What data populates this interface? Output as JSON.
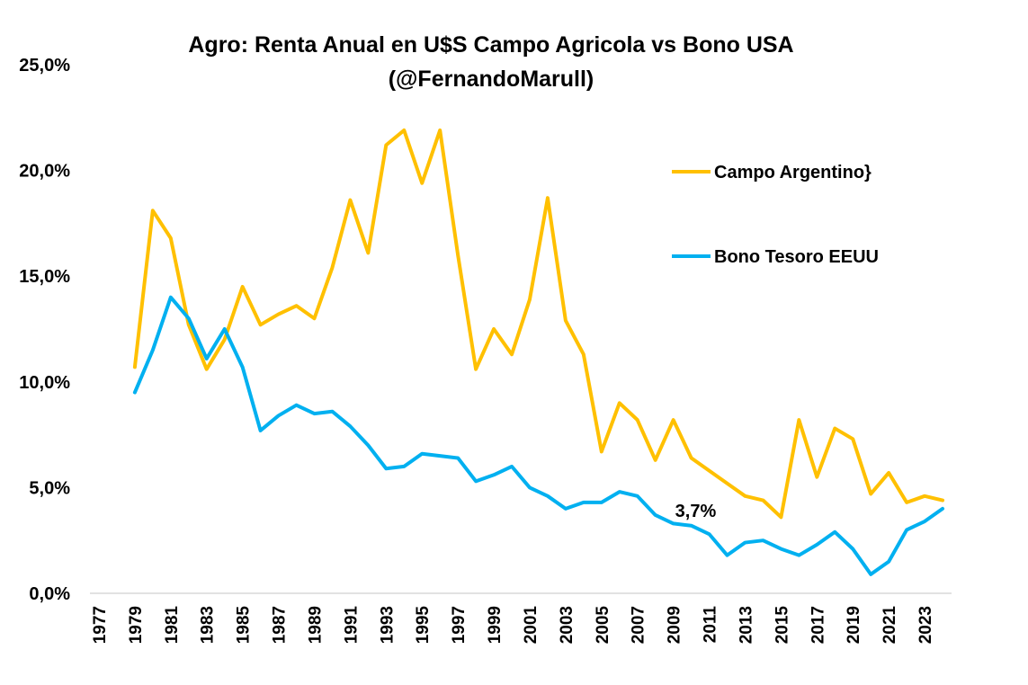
{
  "chart_data": {
    "type": "line",
    "title_line1": "Agro: Renta Anual en U$S Campo Agricola  vs Bono USA",
    "title_line2": "(@FernandoMarull)",
    "y_tick_labels": [
      "0,0%",
      "5,0%",
      "10,0%",
      "15,0%",
      "20,0%",
      "25,0%"
    ],
    "y_ticks": [
      0,
      5,
      10,
      15,
      20,
      25
    ],
    "ylim": [
      0,
      25
    ],
    "x_tick_labels": [
      "1977",
      "1979",
      "1981",
      "1983",
      "1985",
      "1987",
      "1989",
      "1991",
      "1993",
      "1995",
      "1997",
      "1999",
      "2001",
      "2003",
      "2005",
      "2007",
      "2009",
      "2011",
      "2013",
      "2015",
      "2017",
      "2019",
      "2021",
      "2023"
    ],
    "x": [
      1977,
      1978,
      1979,
      1980,
      1981,
      1982,
      1983,
      1984,
      1985,
      1986,
      1987,
      1988,
      1989,
      1990,
      1991,
      1992,
      1993,
      1994,
      1995,
      1996,
      1997,
      1998,
      1999,
      2000,
      2001,
      2002,
      2003,
      2004,
      2005,
      2006,
      2007,
      2008,
      2009,
      2010,
      2011,
      2012,
      2013,
      2014,
      2015,
      2016,
      2017,
      2018,
      2019,
      2020,
      2021,
      2022,
      2023,
      2024
    ],
    "grid": false,
    "legend_position": "right",
    "series": [
      {
        "name": "Campo Argentino}",
        "color": "#FFC000",
        "values": [
          null,
          null,
          10.7,
          18.1,
          16.8,
          12.7,
          10.6,
          12.0,
          14.5,
          12.7,
          13.2,
          13.6,
          13.0,
          15.4,
          18.6,
          16.1,
          21.2,
          21.9,
          19.4,
          21.9,
          16.0,
          10.6,
          12.5,
          11.3,
          13.9,
          18.7,
          12.9,
          11.3,
          6.7,
          9.0,
          8.2,
          6.3,
          8.2,
          6.4,
          5.8,
          5.2,
          4.6,
          4.4,
          3.6,
          8.2,
          5.5,
          7.8,
          7.3,
          4.7,
          5.7,
          4.3,
          4.6,
          4.4
        ]
      },
      {
        "name": "Bono Tesoro EEUU",
        "color": "#00B0F0",
        "values": [
          null,
          null,
          9.5,
          11.5,
          14.0,
          13.0,
          11.1,
          12.5,
          10.7,
          7.7,
          8.4,
          8.9,
          8.5,
          8.6,
          7.9,
          7.0,
          5.9,
          6.0,
          6.6,
          6.5,
          6.4,
          5.3,
          5.6,
          6.0,
          5.0,
          4.6,
          4.0,
          4.3,
          4.3,
          4.8,
          4.6,
          3.7,
          3.3,
          3.2,
          2.8,
          1.8,
          2.4,
          2.5,
          2.1,
          1.8,
          2.3,
          2.9,
          2.1,
          0.9,
          1.5,
          3.0,
          3.4,
          4.0
        ]
      }
    ],
    "annotations": [
      {
        "text": "3,7%",
        "x": 2009,
        "y": 3.7
      }
    ]
  }
}
